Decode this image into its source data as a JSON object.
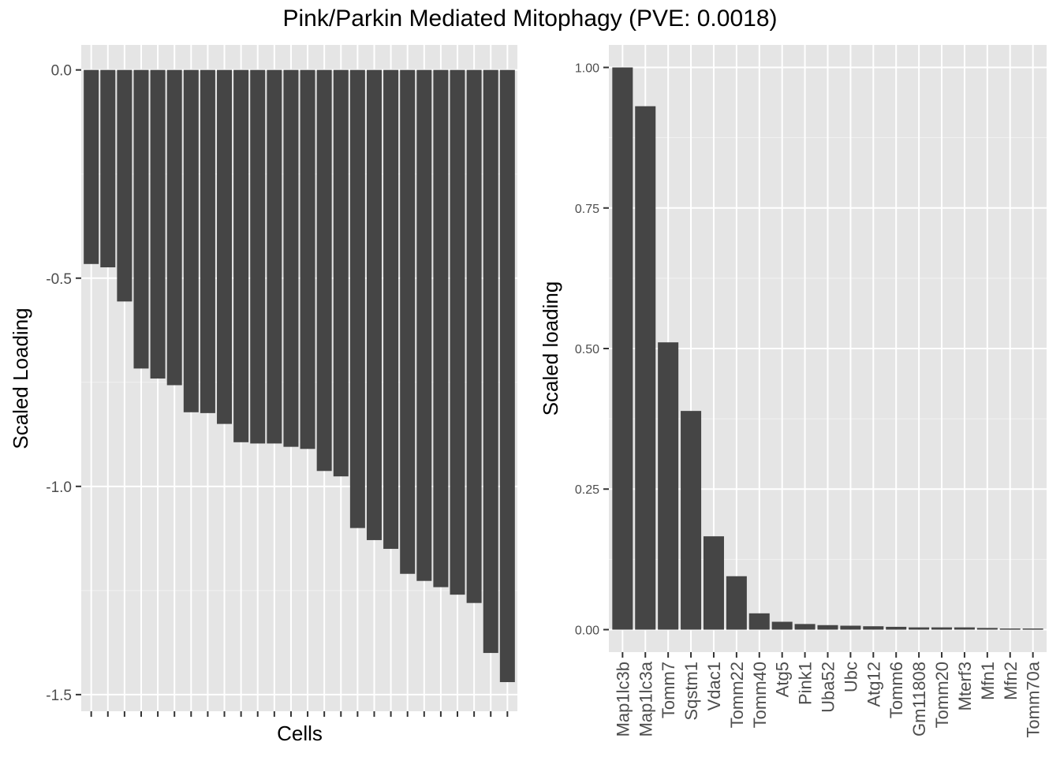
{
  "title": "Pink/Parkin Mediated Mitophagy (PVE: 0.0018)",
  "chart_data": [
    {
      "type": "bar",
      "xlabel": "Cells",
      "ylabel": "Scaled Loading",
      "ylim": [
        -1.54,
        0.06
      ],
      "yticks": [
        0.0,
        -0.5,
        -1.0,
        -1.5
      ],
      "ytick_labels": [
        "0.0",
        "-0.5",
        "-1.0",
        "-1.5"
      ],
      "values": [
        -0.466,
        -0.474,
        -0.556,
        -0.717,
        -0.741,
        -0.757,
        -0.822,
        -0.824,
        -0.85,
        -0.894,
        -0.897,
        -0.897,
        -0.905,
        -0.91,
        -0.963,
        -0.976,
        -1.1,
        -1.129,
        -1.15,
        -1.21,
        -1.227,
        -1.242,
        -1.26,
        -1.28,
        -1.4,
        -1.47
      ],
      "bar_color": "#454545",
      "panel_background": "#e5e5e5",
      "grid": true
    },
    {
      "type": "bar",
      "xlabel": "",
      "ylabel": "Scaled loading",
      "ylim": [
        -0.04,
        1.04
      ],
      "yticks": [
        0.0,
        0.25,
        0.5,
        0.75,
        1.0
      ],
      "ytick_labels": [
        "0.00",
        "0.25",
        "0.50",
        "0.75",
        "1.00"
      ],
      "categories": [
        "Map1lc3b",
        "Map1lc3a",
        "Tomm7",
        "Sqstm1",
        "Vdac1",
        "Tomm22",
        "Tomm40",
        "Atg5",
        "Pink1",
        "Uba52",
        "Ubc",
        "Atg12",
        "Tomm6",
        "Gm11808",
        "Tomm20",
        "Mterf3",
        "Mfn1",
        "Mfn2",
        "Tomm70a"
      ],
      "values": [
        1.0,
        0.931,
        0.511,
        0.389,
        0.166,
        0.095,
        0.029,
        0.014,
        0.01,
        0.008,
        0.007,
        0.006,
        0.005,
        0.004,
        0.004,
        0.004,
        0.003,
        0.002,
        0.002
      ],
      "bar_color": "#454545",
      "panel_background": "#e5e5e5",
      "grid": true
    }
  ]
}
